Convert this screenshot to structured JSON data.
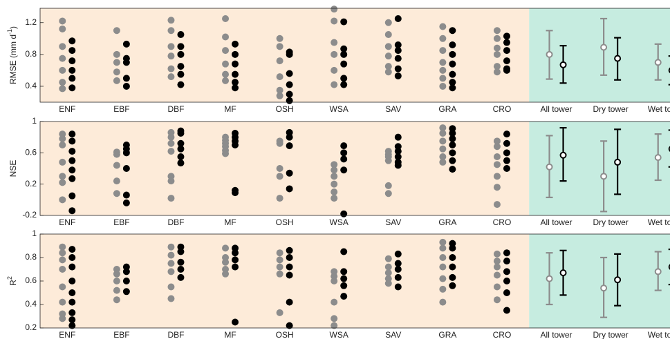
{
  "chart_data": [
    {
      "type": "strip",
      "ylabel": "RMSE (mm d",
      "ylabel_sup": "-1",
      "ylabel_end": ")",
      "categories": [
        "ENF",
        "EBF",
        "DBF",
        "MF",
        "OSH",
        "WSA",
        "SAV",
        "GRA",
        "CRO"
      ],
      "series": [
        {
          "color": "#8c8c8c",
          "values": [
            [
              1.22,
              1.12,
              0.9,
              0.75,
              0.6,
              0.45,
              0.37
            ],
            [
              1.1,
              0.8,
              0.7,
              0.58,
              0.47
            ],
            [
              1.23,
              1.1,
              0.9,
              0.78,
              0.62,
              0.52
            ],
            [
              1.25,
              1.02,
              0.85,
              0.68,
              0.55,
              0.47
            ],
            [
              1.0,
              0.9,
              0.72,
              0.52,
              0.35,
              0.28
            ],
            [
              1.37,
              1.22,
              0.95,
              0.8,
              0.6,
              0.42
            ],
            [
              1.2,
              1.05,
              0.9,
              0.78,
              0.65,
              0.58
            ],
            [
              1.15,
              1.0,
              0.85,
              0.7,
              0.6,
              0.5,
              0.4
            ],
            [
              1.1,
              1.0,
              0.88,
              0.8,
              0.65,
              0.58
            ]
          ]
        },
        {
          "color": "#000000",
          "values": [
            [
              0.97,
              0.85,
              0.72,
              0.6,
              0.5,
              0.38
            ],
            [
              0.93,
              0.75,
              0.7,
              0.5,
              0.4
            ],
            [
              1.05,
              0.9,
              0.8,
              0.65,
              0.55,
              0.42
            ],
            [
              0.93,
              0.8,
              0.68,
              0.55,
              0.45,
              0.38
            ],
            [
              0.83,
              0.8,
              0.56,
              0.42,
              0.3,
              0.22
            ],
            [
              1.21,
              0.87,
              0.8,
              0.68,
              0.5,
              0.42
            ],
            [
              1.25,
              0.92,
              0.85,
              0.75,
              0.62,
              0.53
            ],
            [
              1.1,
              0.92,
              0.8,
              0.68,
              0.55,
              0.45,
              0.38
            ],
            [
              1.03,
              0.95,
              0.85,
              0.72,
              0.62,
              0.6
            ]
          ]
        }
      ],
      "summary_categories": [
        "All tower",
        "Dry tower",
        "Wet towe"
      ],
      "summary_series": [
        {
          "color": "#8c8c8c",
          "values": [
            0.8,
            0.89,
            0.7
          ],
          "lower": [
            0.49,
            0.54,
            0.48
          ],
          "upper": [
            1.1,
            1.25,
            0.93
          ]
        },
        {
          "color": "#000000",
          "values": [
            0.67,
            0.75,
            0.6
          ],
          "lower": [
            0.44,
            0.48,
            0.42
          ],
          "upper": [
            0.91,
            1.01,
            0.78
          ]
        }
      ],
      "ylim": [
        0.2,
        1.38
      ],
      "yticks": [
        0.4,
        0.8,
        1.2
      ],
      "background_colors": [
        "#fdebd9",
        "#c6ece0"
      ]
    },
    {
      "type": "strip",
      "ylabel": "NSE",
      "categories": [
        "ENF",
        "EBF",
        "DBF",
        "MF",
        "OSH",
        "WSA",
        "SAV",
        "GRA",
        "CRO"
      ],
      "series": [
        {
          "color": "#8c8c8c",
          "values": [
            [
              0.84,
              0.78,
              0.7,
              0.48,
              0.3,
              0.22,
              0.0
            ],
            [
              0.61,
              0.58,
              0.44,
              0.24,
              0.08
            ],
            [
              0.86,
              0.8,
              0.72,
              0.62,
              0.3,
              0.24,
              0.02
            ],
            [
              0.8,
              0.76,
              0.72,
              0.68,
              0.63,
              0.59
            ],
            [
              0.75,
              0.72,
              0.4,
              0.3,
              0.02
            ],
            [
              0.45,
              0.38,
              0.3,
              0.2,
              0.1,
              0.02
            ],
            [
              0.62,
              0.58,
              0.55,
              0.5,
              0.18,
              0.08
            ],
            [
              0.92,
              0.85,
              0.75,
              0.65,
              0.55,
              0.48
            ],
            [
              0.75,
              0.68,
              0.55,
              0.45,
              0.3,
              0.16,
              -0.06
            ]
          ]
        },
        {
          "color": "#000000",
          "values": [
            [
              0.84,
              0.75,
              0.62,
              0.5,
              0.38,
              0.27,
              0.05,
              -0.14
            ],
            [
              0.7,
              0.65,
              0.6,
              0.4,
              0.06,
              -0.04
            ],
            [
              0.88,
              0.85,
              0.72,
              0.65,
              0.55,
              0.47
            ],
            [
              0.85,
              0.8,
              0.75,
              0.7,
              0.12,
              0.09
            ],
            [
              0.86,
              0.8,
              0.69,
              0.34,
              0.14
            ],
            [
              0.69,
              0.6,
              0.52,
              0.38,
              -0.18
            ],
            [
              0.8,
              0.68,
              0.62,
              0.55,
              0.48,
              0.44
            ],
            [
              0.91,
              0.85,
              0.78,
              0.7,
              0.6,
              0.5,
              0.39
            ],
            [
              0.84,
              0.72,
              0.6,
              0.5,
              0.4
            ]
          ]
        }
      ],
      "summary_categories": [
        "All tower",
        "Dry tower",
        "Wet towe"
      ],
      "summary_series": [
        {
          "color": "#8c8c8c",
          "values": [
            0.42,
            0.3,
            0.54
          ],
          "lower": [
            0.03,
            -0.15,
            0.25
          ],
          "upper": [
            0.82,
            0.75,
            0.84
          ]
        },
        {
          "color": "#000000",
          "values": [
            0.57,
            0.48,
            0.65
          ],
          "lower": [
            0.24,
            0.07,
            0.42
          ],
          "upper": [
            0.92,
            0.9,
            0.89
          ]
        }
      ],
      "ylim": [
        -0.2,
        1
      ],
      "yticks": [
        -0.2,
        0.2,
        0.6,
        1
      ],
      "background_colors": [
        "#fdebd9",
        "#c6ece0"
      ]
    },
    {
      "type": "strip",
      "ylabel": "R",
      "ylabel_sup": "2",
      "categories": [
        "ENF",
        "EBF",
        "DBF",
        "MF",
        "OSH",
        "WSA",
        "SAV",
        "GRA",
        "CRO"
      ],
      "series": [
        {
          "color": "#8c8c8c",
          "values": [
            [
              0.89,
              0.84,
              0.78,
              0.7,
              0.55,
              0.42,
              0.32,
              0.28
            ],
            [
              0.7,
              0.66,
              0.6,
              0.52,
              0.44
            ],
            [
              0.89,
              0.82,
              0.75,
              0.68,
              0.55,
              0.45
            ],
            [
              0.88,
              0.8,
              0.76,
              0.7,
              0.66
            ],
            [
              0.84,
              0.78,
              0.72,
              0.66,
              0.33
            ],
            [
              0.68,
              0.64,
              0.6,
              0.42,
              0.28,
              0.22
            ],
            [
              0.79,
              0.72,
              0.67,
              0.62,
              0.58
            ],
            [
              0.93,
              0.88,
              0.8,
              0.72,
              0.62,
              0.53,
              0.42
            ],
            [
              0.83,
              0.77,
              0.72,
              0.65,
              0.55,
              0.44
            ]
          ]
        },
        {
          "color": "#000000",
          "values": [
            [
              0.87,
              0.8,
              0.72,
              0.6,
              0.5,
              0.42,
              0.33,
              0.27,
              0.22
            ],
            [
              0.72,
              0.68,
              0.6,
              0.51
            ],
            [
              0.89,
              0.85,
              0.76,
              0.7,
              0.63
            ],
            [
              0.88,
              0.84,
              0.78,
              0.72,
              0.25
            ],
            [
              0.86,
              0.8,
              0.72,
              0.65,
              0.42,
              0.22
            ],
            [
              0.85,
              0.68,
              0.62,
              0.56,
              0.47
            ],
            [
              0.83,
              0.75,
              0.7,
              0.63,
              0.55
            ],
            [
              0.92,
              0.88,
              0.8,
              0.72,
              0.63,
              0.56
            ],
            [
              0.84,
              0.77,
              0.68,
              0.6,
              0.5,
              0.35
            ]
          ]
        }
      ],
      "summary_categories": [
        "All tower",
        "Dry tower",
        "Wet towe"
      ],
      "summary_series": [
        {
          "color": "#8c8c8c",
          "values": [
            0.62,
            0.54,
            0.68
          ],
          "lower": [
            0.4,
            0.29,
            0.52
          ],
          "upper": [
            0.84,
            0.8,
            0.85
          ]
        },
        {
          "color": "#000000",
          "values": [
            0.67,
            0.61,
            0.72
          ],
          "lower": [
            0.48,
            0.39,
            0.57
          ],
          "upper": [
            0.86,
            0.83,
            0.87
          ]
        }
      ],
      "ylim": [
        0.2,
        1
      ],
      "yticks": [
        0.2,
        0.4,
        0.6,
        0.8,
        1
      ],
      "background_colors": [
        "#fdebd9",
        "#c6ece0"
      ]
    }
  ]
}
